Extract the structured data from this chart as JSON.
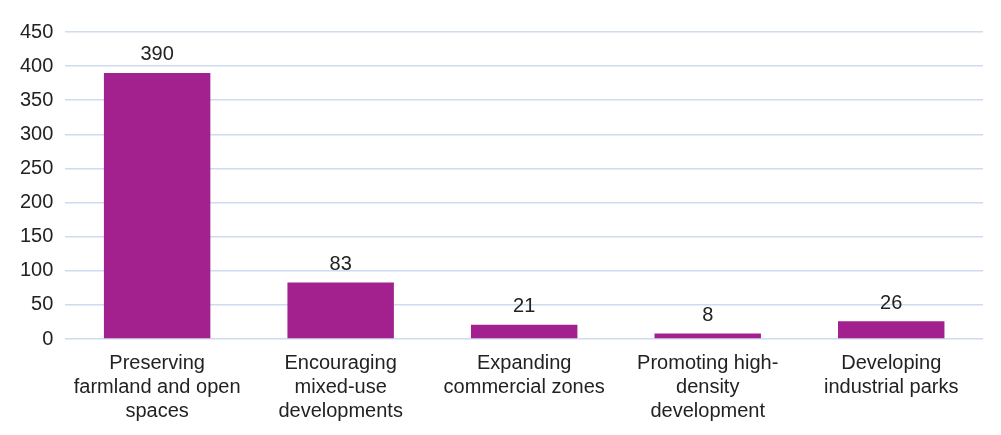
{
  "chart_data": {
    "type": "bar",
    "categories": [
      "Preserving farmland and open spaces",
      "Encouraging mixed-use developments",
      "Expanding commercial zones",
      "Promoting high-density development",
      "Developing industrial parks"
    ],
    "values": [
      390,
      83,
      21,
      8,
      26
    ],
    "color": "#a3218f",
    "ylim": [
      0,
      450
    ],
    "yticks": [
      0,
      50,
      100,
      150,
      200,
      250,
      300,
      350,
      400,
      450
    ],
    "grid": "y",
    "data_labels": true,
    "legend": false
  }
}
